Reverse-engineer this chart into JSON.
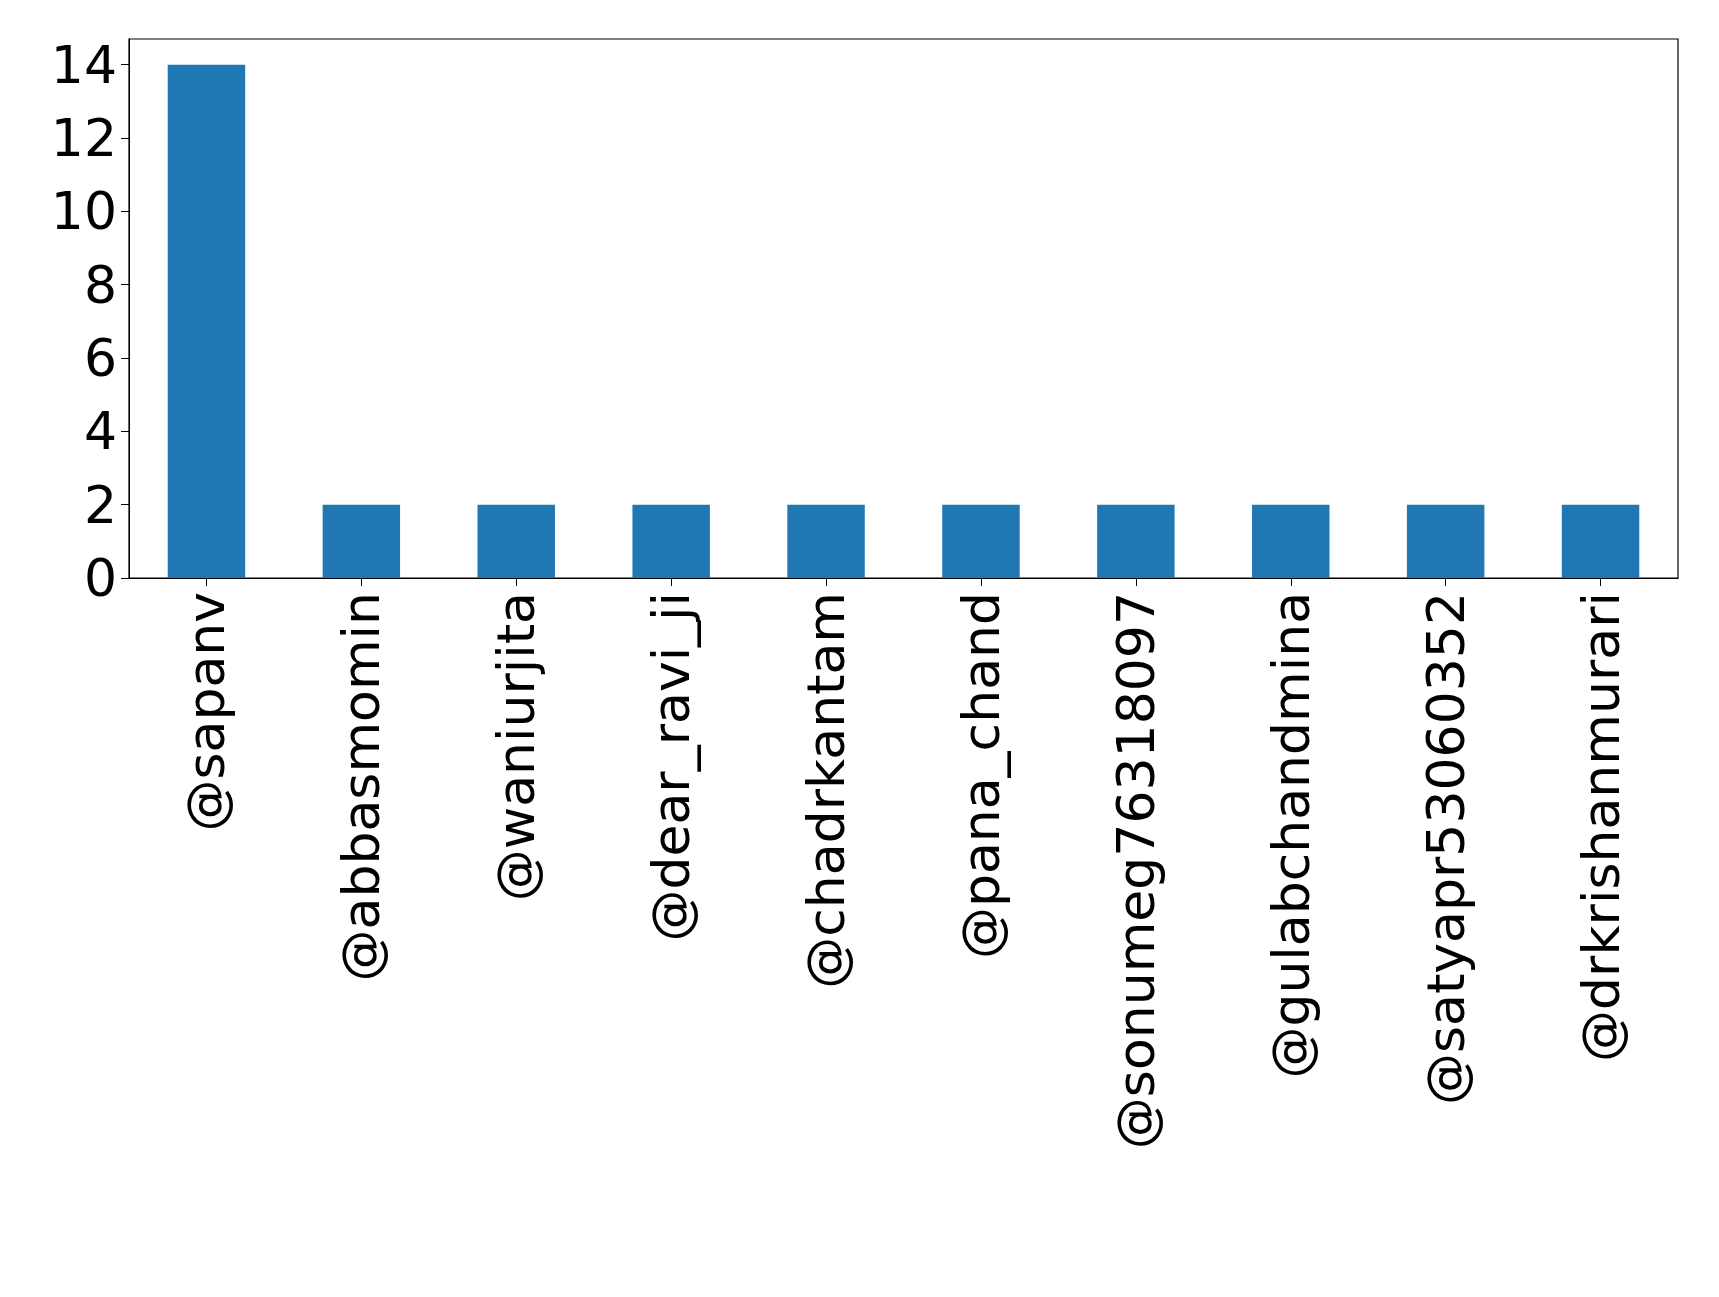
{
  "chart_data": {
    "type": "bar",
    "categories": [
      "@sapanv",
      "@abbasmomin",
      "@waniurjita",
      "@dear_ravi_ji",
      "@chadrkantam",
      "@pana_chand",
      "@sonumeg76318097",
      "@gulabchandmina",
      "@satyapr53060352",
      "@drkrishanmurari"
    ],
    "values": [
      14,
      2,
      2,
      2,
      2,
      2,
      2,
      2,
      2,
      2
    ],
    "color": "#1f77b4",
    "ylim": [
      0,
      14.7
    ],
    "yticks": [
      0,
      2,
      4,
      6,
      8,
      10,
      12,
      14
    ],
    "grid": false
  }
}
